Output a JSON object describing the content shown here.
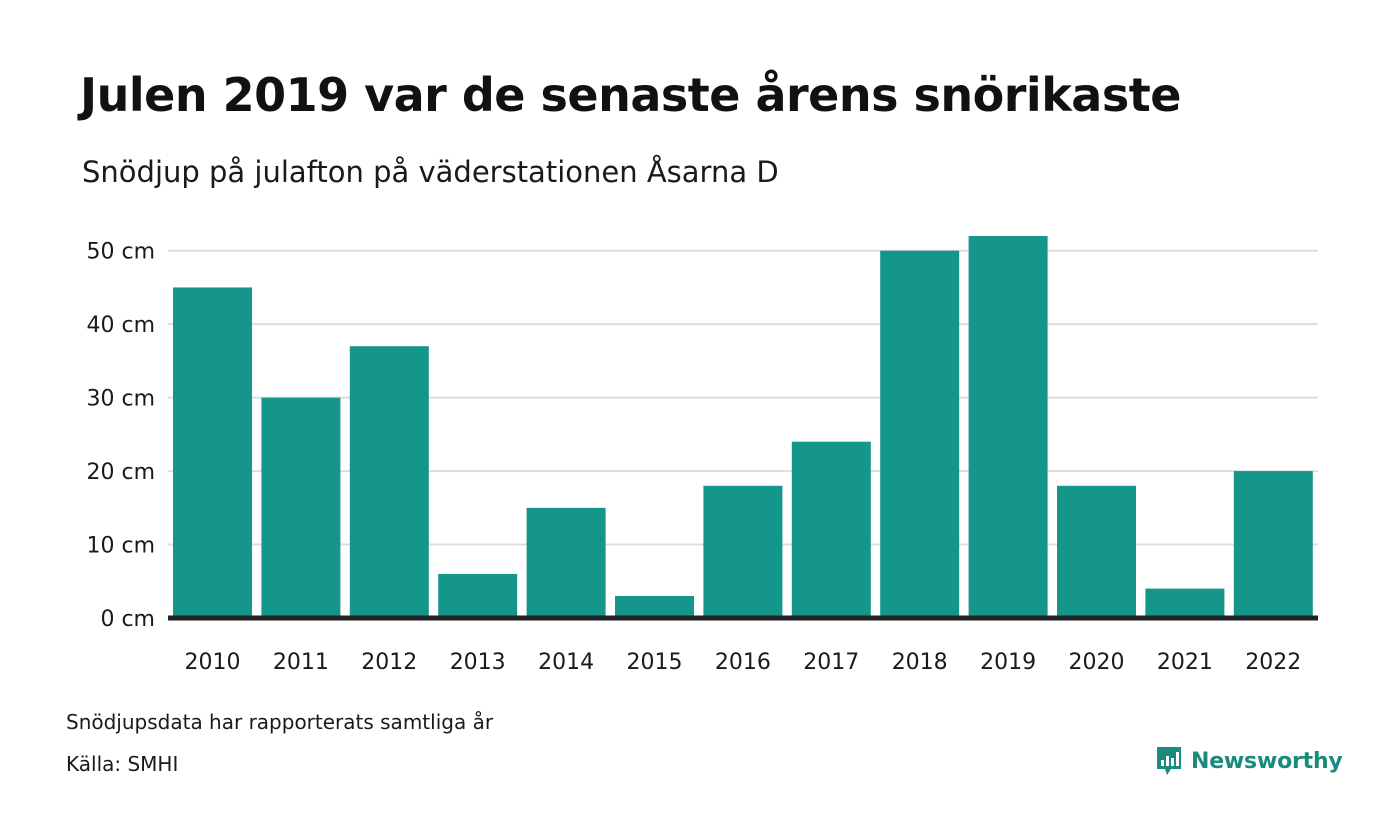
{
  "header": {
    "title": "Julen 2019 var de senaste årens snörikaste",
    "subtitle": "Snödjup på julafton på väderstationen Åsarna D"
  },
  "chart_data": {
    "type": "bar",
    "title": "Julen 2019 var de senaste årens snörikaste",
    "subtitle": "Snödjup på julafton på väderstationen Åsarna D",
    "xlabel": "",
    "ylabel": "",
    "categories": [
      "2010",
      "2011",
      "2012",
      "2013",
      "2014",
      "2015",
      "2016",
      "2017",
      "2018",
      "2019",
      "2020",
      "2021",
      "2022"
    ],
    "values": [
      45,
      30,
      37,
      6,
      15,
      3,
      18,
      24,
      50,
      52,
      18,
      4,
      20
    ],
    "ylim": [
      0,
      55
    ],
    "yticks": [
      0,
      10,
      20,
      30,
      40,
      50
    ],
    "ytick_labels": [
      "0 cm",
      "10 cm",
      "20 cm",
      "30 cm",
      "40 cm",
      "50 cm"
    ],
    "grid": true,
    "legend": "none",
    "bar_color": "#14968a",
    "grid_color": "#dddddd",
    "baseline_color": "#222222"
  },
  "footer": {
    "note": "Snödjupsdata har rapporterats samtliga år",
    "source": "Källa: SMHI",
    "brand": "Newsworthy",
    "brand_icon": "newsworthy-logo-icon",
    "brand_color": "#1b8a7e"
  }
}
